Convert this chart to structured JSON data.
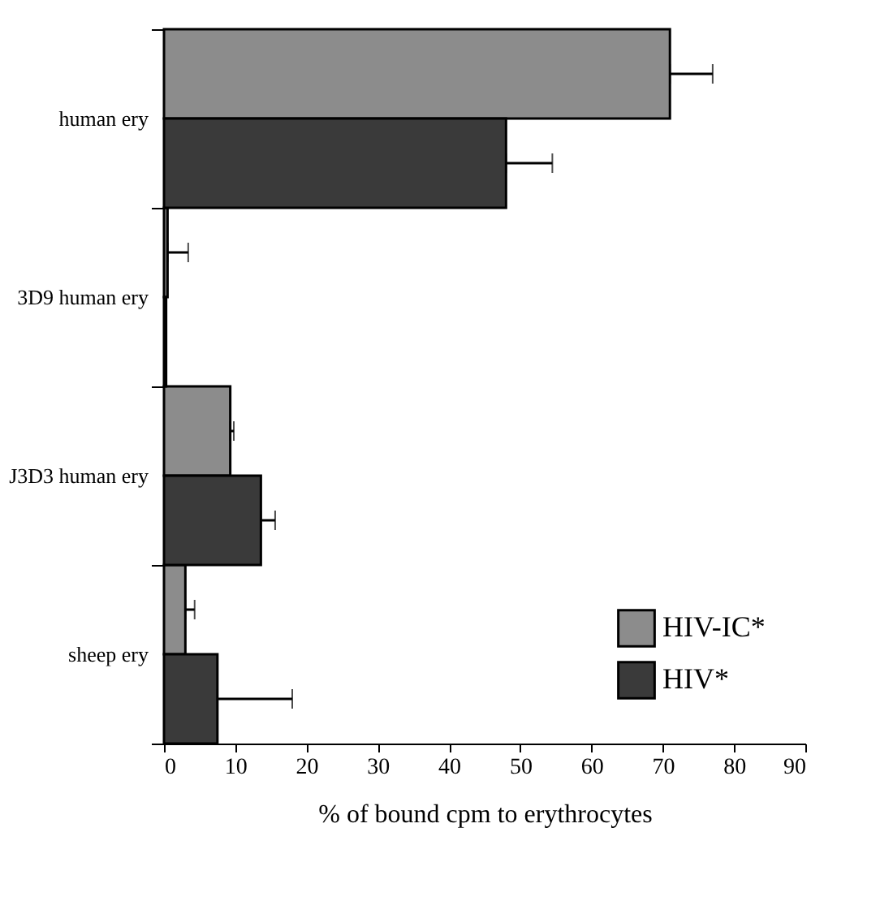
{
  "chart_data": {
    "type": "bar",
    "orientation": "horizontal",
    "xlabel": "% of bound cpm to erythrocytes",
    "categories": [
      "human ery",
      "3D9 human ery",
      "J3D3 human ery",
      "sheep ery"
    ],
    "series": [
      {
        "name": "HIV-IC*",
        "color": "#8c8c8c",
        "values": [
          71,
          0.5,
          9.3,
          3
        ],
        "errors": [
          [
            71,
            77
          ],
          [
            0.5,
            3.4
          ],
          [
            9.3,
            9.8
          ],
          [
            3,
            4.3
          ]
        ]
      },
      {
        "name": "HIV*",
        "color": "#3a3a3a",
        "values": [
          48,
          0.3,
          13.6,
          7.5
        ],
        "errors": [
          [
            48,
            54.5
          ],
          null,
          [
            13.6,
            15.6
          ],
          [
            7.5,
            18
          ]
        ]
      }
    ],
    "xlim": [
      0,
      90
    ],
    "xticks": [
      0,
      10,
      20,
      30,
      40,
      50,
      60,
      70,
      80,
      90
    ],
    "grid": false,
    "legend": "bottom right"
  }
}
